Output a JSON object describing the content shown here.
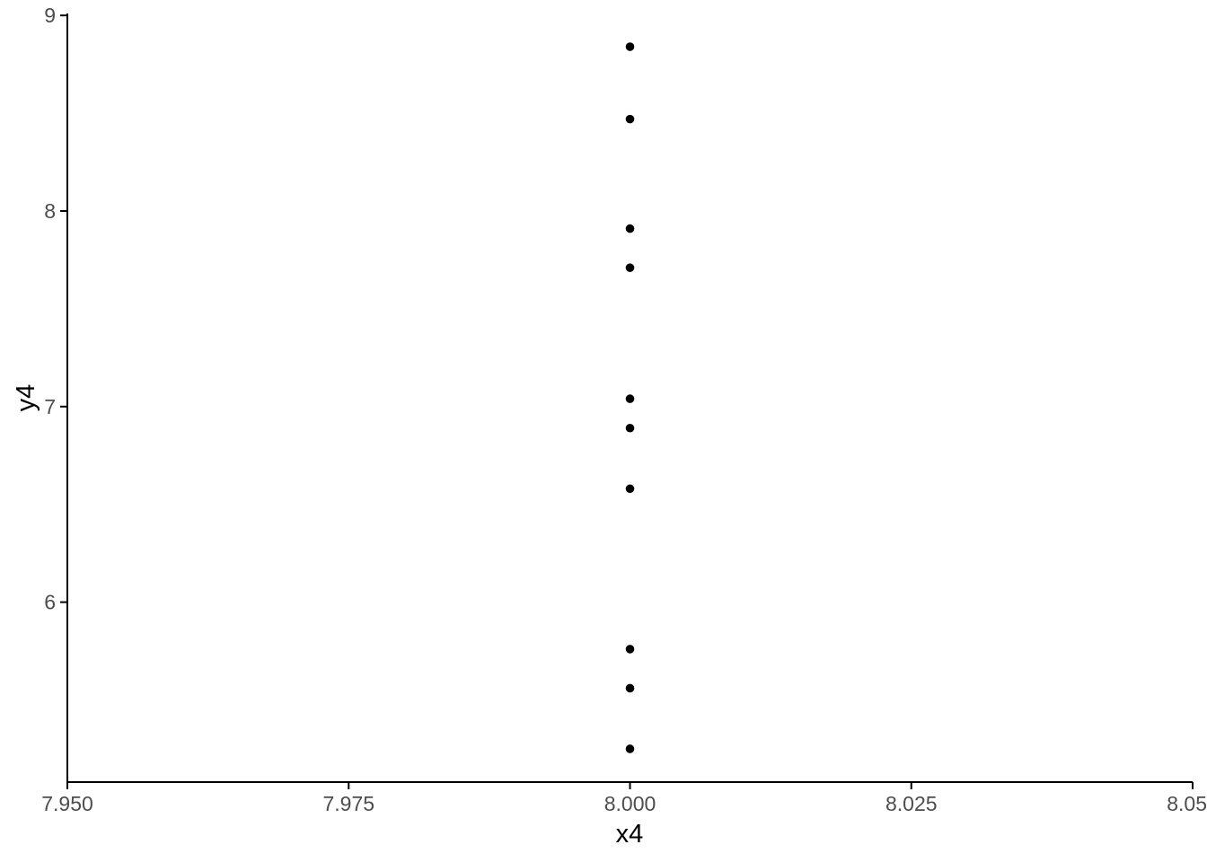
{
  "chart_data": {
    "type": "scatter",
    "title": "",
    "xlabel": "x4",
    "ylabel": "y4",
    "x": [
      8,
      8,
      8,
      8,
      8,
      8,
      8,
      8,
      8,
      8
    ],
    "y": [
      8.84,
      8.47,
      7.91,
      7.71,
      7.04,
      6.89,
      6.58,
      5.76,
      5.56,
      5.25
    ],
    "xlim": [
      7.95,
      8.05
    ],
    "ylim": [
      5.08,
      9.01
    ],
    "x_ticks": [
      7.95,
      7.975,
      8.0,
      8.025,
      8.05
    ],
    "x_tick_labels": [
      "7.950",
      "7.975",
      "8.000",
      "8.025",
      "8.050"
    ],
    "y_ticks": [
      6,
      7,
      8,
      9
    ],
    "y_tick_labels": [
      "6",
      "7",
      "8",
      "9"
    ],
    "grid": false,
    "legend": "none",
    "point_radius": 4.8,
    "colors": {
      "point": "#000000",
      "axis_line": "#000000",
      "tick_label": "#4d4d4d",
      "axis_title": "#000000",
      "background": "#ffffff"
    }
  }
}
